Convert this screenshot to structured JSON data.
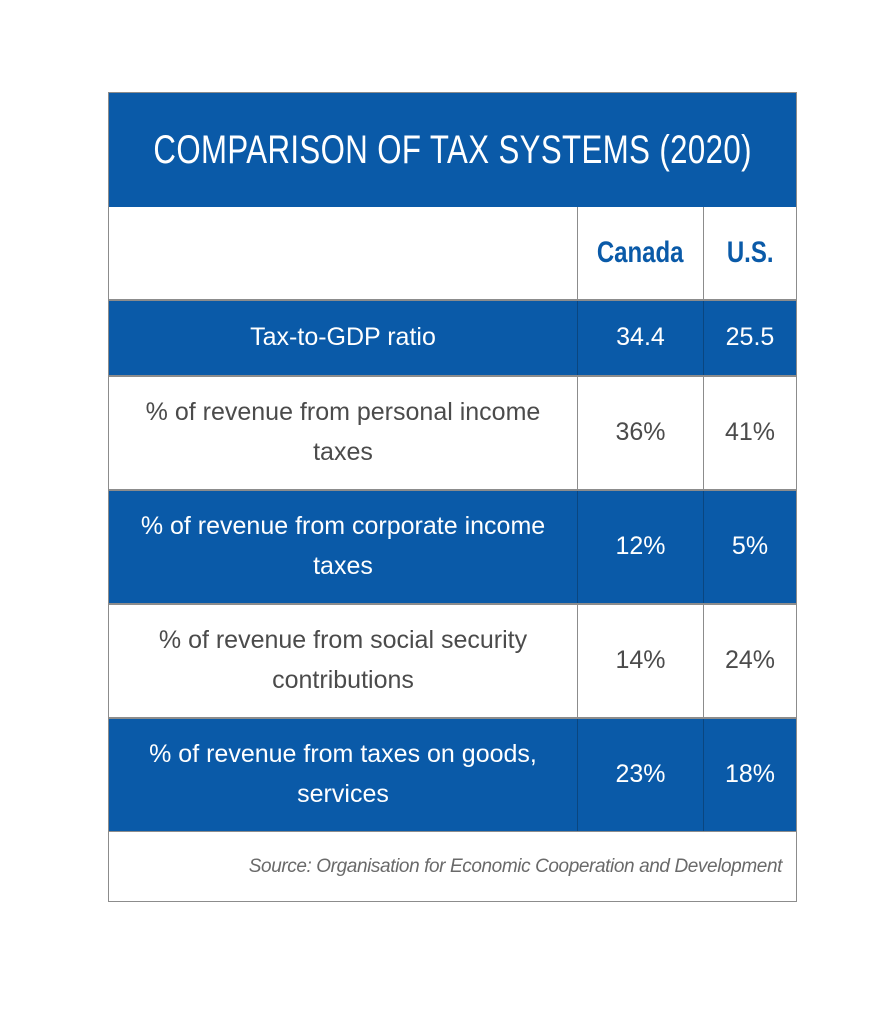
{
  "chart_data": {
    "type": "table",
    "title": "COMPARISON OF TAX SYSTEMS (2020)",
    "columns": [
      "",
      "Canada",
      "U.S."
    ],
    "rows": [
      {
        "label": "Tax-to-GDP ratio",
        "canada": "34.4",
        "us": "25.5"
      },
      {
        "label": "% of revenue from personal income taxes",
        "canada": "36%",
        "us": "41%"
      },
      {
        "label": "% of revenue from corporate income taxes",
        "canada": "12%",
        "us": "5%"
      },
      {
        "label": "% of revenue from social security contributions",
        "canada": "14%",
        "us": "24%"
      },
      {
        "label": "% of revenue from taxes on goods, services",
        "canada": "23%",
        "us": "18%"
      }
    ],
    "source": "Source: Organisation for Economic Cooperation and Development"
  },
  "colors": {
    "header_blue": "#0a5aa8",
    "text_gray": "#4b4b4b",
    "border_gray": "#8c8c8c"
  }
}
